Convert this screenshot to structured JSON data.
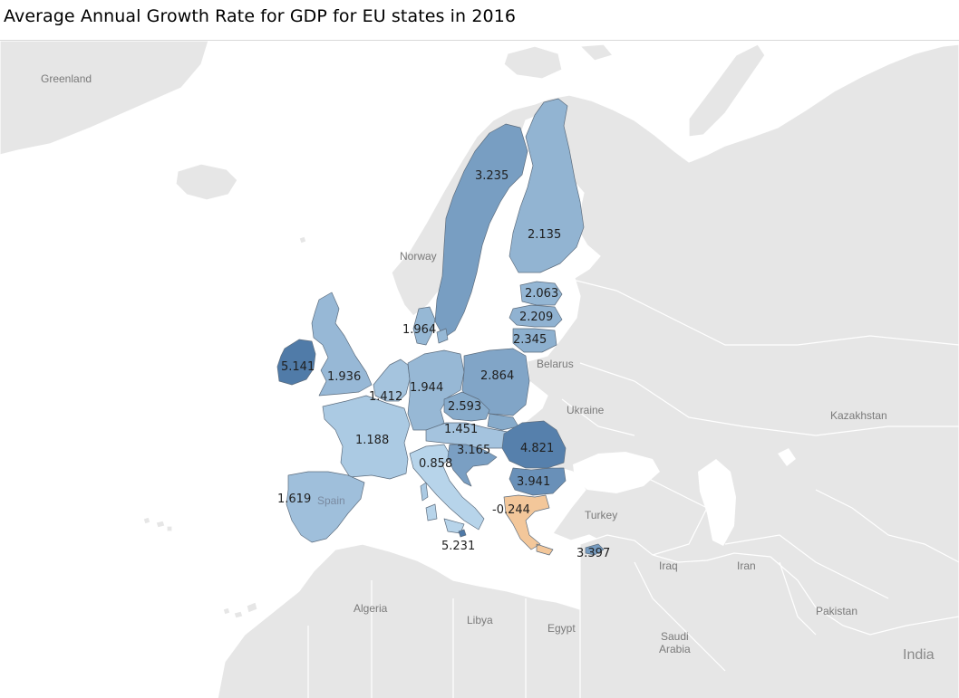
{
  "title": "Average Annual Growth Rate for GDP for EU states in 2016",
  "colors": {
    "low_negative": "#f3c79a",
    "scale_low": "#b7d4ea",
    "scale_high": "#4e79a7",
    "background_land": "#e6e6e6",
    "water": "#ffffff"
  },
  "background_labels": {
    "greenland": "Greenland",
    "norway": "Norway",
    "belarus": "Belarus",
    "ukraine": "Ukraine",
    "kazakhstan": "Kazakhstan",
    "turkey": "Turkey",
    "iraq": "Iraq",
    "iran": "Iran",
    "algeria": "Algeria",
    "libya": "Libya",
    "egypt": "Egypt",
    "saudi_arabia_1": "Saudi",
    "saudi_arabia_2": "Arabia",
    "pakistan": "Pakistan",
    "india": "India",
    "spain": "Spain"
  },
  "map_data": {
    "measure": "Average Annual Growth Rate for GDP",
    "year": 2016,
    "values": [
      {
        "key": "sweden",
        "label": "3.235",
        "value": 3.235
      },
      {
        "key": "finland",
        "label": "2.135",
        "value": 2.135
      },
      {
        "key": "estonia",
        "label": "2.063",
        "value": 2.063
      },
      {
        "key": "latvia",
        "label": "2.209",
        "value": 2.209
      },
      {
        "key": "lithuania",
        "label": "2.345",
        "value": 2.345
      },
      {
        "key": "denmark",
        "label": "1.964",
        "value": 1.964
      },
      {
        "key": "ireland",
        "label": "5.141",
        "value": 5.141
      },
      {
        "key": "uk",
        "label": "1.936",
        "value": 1.936
      },
      {
        "key": "netherlands_belgium",
        "label": "1.412",
        "value": 1.412
      },
      {
        "key": "germany",
        "label": "1.944",
        "value": 1.944
      },
      {
        "key": "poland",
        "label": "2.864",
        "value": 2.864
      },
      {
        "key": "czechia",
        "label": "2.593",
        "value": 2.593
      },
      {
        "key": "austria_hungary",
        "label": "1.451",
        "value": 1.451
      },
      {
        "key": "france",
        "label": "1.188",
        "value": 1.188
      },
      {
        "key": "croatia_slovenia",
        "label": "3.165",
        "value": 3.165
      },
      {
        "key": "romania",
        "label": "4.821",
        "value": 4.821
      },
      {
        "key": "italy",
        "label": "0.858",
        "value": 0.858
      },
      {
        "key": "bulgaria",
        "label": "3.941",
        "value": 3.941
      },
      {
        "key": "portugal_spain",
        "label": "1.619",
        "value": 1.619
      },
      {
        "key": "greece",
        "label": "-0.244",
        "value": -0.244
      },
      {
        "key": "malta",
        "label": "5.231",
        "value": 5.231
      },
      {
        "key": "cyprus",
        "label": "3.397",
        "value": 3.397
      }
    ]
  }
}
